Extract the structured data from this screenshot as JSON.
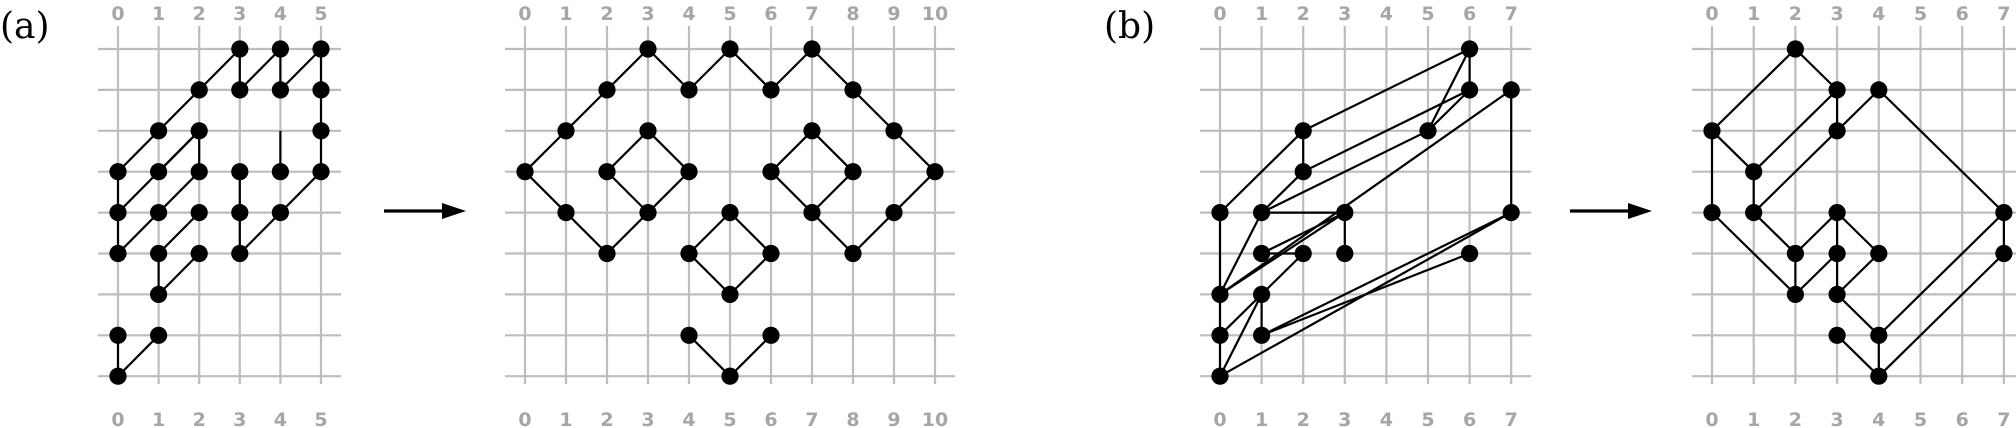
{
  "panels": [
    {
      "label": "(a)"
    },
    {
      "label": "(b)"
    }
  ],
  "diagrams": [
    {
      "id": "a-left",
      "columns": [
        "0",
        "1",
        "2",
        "3",
        "4",
        "5"
      ],
      "rows": 9,
      "nodes": [
        [
          3,
          0
        ],
        [
          4,
          0
        ],
        [
          5,
          0
        ],
        [
          2,
          1
        ],
        [
          3,
          1
        ],
        [
          4,
          1
        ],
        [
          5,
          1
        ],
        [
          1,
          2
        ],
        [
          2,
          2
        ],
        [
          5,
          2
        ],
        [
          0,
          3
        ],
        [
          1,
          3
        ],
        [
          2,
          3
        ],
        [
          3,
          3
        ],
        [
          4,
          3
        ],
        [
          5,
          3
        ],
        [
          0,
          4
        ],
        [
          1,
          4
        ],
        [
          2,
          4
        ],
        [
          3,
          4
        ],
        [
          4,
          4
        ],
        [
          0,
          5
        ],
        [
          1,
          5
        ],
        [
          2,
          5
        ],
        [
          3,
          5
        ],
        [
          1,
          6
        ],
        [
          0,
          7
        ],
        [
          1,
          7
        ],
        [
          0,
          8
        ]
      ],
      "edges": [
        [
          [
            0,
            3
          ],
          [
            3,
            0
          ]
        ],
        [
          [
            3,
            1
          ],
          [
            4,
            0
          ]
        ],
        [
          [
            4,
            1
          ],
          [
            5,
            0
          ]
        ],
        [
          [
            3,
            0
          ],
          [
            3,
            1
          ]
        ],
        [
          [
            4,
            0
          ],
          [
            4,
            1
          ]
        ],
        [
          [
            5,
            0
          ],
          [
            5,
            3
          ]
        ],
        [
          [
            0,
            3
          ],
          [
            0,
            5
          ]
        ],
        [
          [
            2,
            2
          ],
          [
            2,
            3
          ]
        ],
        [
          [
            1,
            3
          ],
          [
            2,
            2
          ]
        ],
        [
          [
            0,
            4
          ],
          [
            2,
            2
          ]
        ],
        [
          [
            0,
            5
          ],
          [
            2,
            3
          ]
        ],
        [
          [
            1,
            5
          ],
          [
            2,
            4
          ]
        ],
        [
          [
            1,
            6
          ],
          [
            2,
            5
          ]
        ],
        [
          [
            1,
            5
          ],
          [
            1,
            6
          ]
        ],
        [
          [
            3,
            3
          ],
          [
            3,
            5
          ]
        ],
        [
          [
            4,
            2
          ],
          [
            4,
            3
          ]
        ],
        [
          [
            3,
            5
          ],
          [
            5,
            3
          ]
        ],
        [
          [
            0,
            7
          ],
          [
            0,
            8
          ]
        ],
        [
          [
            0,
            8
          ],
          [
            1,
            7
          ]
        ]
      ]
    },
    {
      "id": "a-right",
      "columns": [
        "0",
        "1",
        "2",
        "3",
        "4",
        "5",
        "6",
        "7",
        "8",
        "9",
        "10"
      ],
      "rows": 9,
      "nodes": [
        [
          3,
          0
        ],
        [
          5,
          0
        ],
        [
          7,
          0
        ],
        [
          2,
          1
        ],
        [
          4,
          1
        ],
        [
          6,
          1
        ],
        [
          8,
          1
        ],
        [
          1,
          2
        ],
        [
          3,
          2
        ],
        [
          7,
          2
        ],
        [
          9,
          2
        ],
        [
          0,
          3
        ],
        [
          2,
          3
        ],
        [
          4,
          3
        ],
        [
          6,
          3
        ],
        [
          8,
          3
        ],
        [
          10,
          3
        ],
        [
          1,
          4
        ],
        [
          3,
          4
        ],
        [
          5,
          4
        ],
        [
          7,
          4
        ],
        [
          9,
          4
        ],
        [
          2,
          5
        ],
        [
          4,
          5
        ],
        [
          6,
          5
        ],
        [
          8,
          5
        ],
        [
          5,
          6
        ],
        [
          4,
          7
        ],
        [
          6,
          7
        ],
        [
          5,
          8
        ]
      ],
      "edges": [
        [
          [
            0,
            3
          ],
          [
            3,
            0
          ]
        ],
        [
          [
            3,
            0
          ],
          [
            4,
            1
          ]
        ],
        [
          [
            4,
            1
          ],
          [
            5,
            0
          ]
        ],
        [
          [
            5,
            0
          ],
          [
            6,
            1
          ]
        ],
        [
          [
            6,
            1
          ],
          [
            7,
            0
          ]
        ],
        [
          [
            7,
            0
          ],
          [
            10,
            3
          ]
        ],
        [
          [
            0,
            3
          ],
          [
            2,
            5
          ]
        ],
        [
          [
            2,
            5
          ],
          [
            4,
            3
          ]
        ],
        [
          [
            3,
            2
          ],
          [
            2,
            3
          ]
        ],
        [
          [
            3,
            2
          ],
          [
            4,
            3
          ]
        ],
        [
          [
            2,
            3
          ],
          [
            3,
            4
          ]
        ],
        [
          [
            6,
            3
          ],
          [
            7,
            2
          ]
        ],
        [
          [
            7,
            2
          ],
          [
            8,
            3
          ]
        ],
        [
          [
            6,
            3
          ],
          [
            8,
            5
          ]
        ],
        [
          [
            8,
            5
          ],
          [
            10,
            3
          ]
        ],
        [
          [
            7,
            4
          ],
          [
            8,
            3
          ]
        ],
        [
          [
            5,
            4
          ],
          [
            4,
            5
          ]
        ],
        [
          [
            5,
            4
          ],
          [
            6,
            5
          ]
        ],
        [
          [
            4,
            5
          ],
          [
            5,
            6
          ]
        ],
        [
          [
            5,
            6
          ],
          [
            6,
            5
          ]
        ],
        [
          [
            4,
            7
          ],
          [
            5,
            8
          ]
        ],
        [
          [
            5,
            8
          ],
          [
            6,
            7
          ]
        ]
      ]
    },
    {
      "id": "b-left",
      "columns": [
        "0",
        "1",
        "2",
        "3",
        "4",
        "5",
        "6",
        "7"
      ],
      "rows": 9,
      "nodes": [
        [
          6,
          0
        ],
        [
          6,
          1
        ],
        [
          7,
          1
        ],
        [
          2,
          2
        ],
        [
          5,
          2
        ],
        [
          2,
          3
        ],
        [
          0,
          4
        ],
        [
          1,
          4
        ],
        [
          3,
          4
        ],
        [
          7,
          4
        ],
        [
          1,
          5
        ],
        [
          2,
          5
        ],
        [
          3,
          5
        ],
        [
          6,
          5
        ],
        [
          0,
          6
        ],
        [
          1,
          6
        ],
        [
          0,
          7
        ],
        [
          1,
          7
        ],
        [
          0,
          8
        ]
      ],
      "edges": [
        [
          [
            0,
            4
          ],
          [
            2,
            2
          ]
        ],
        [
          [
            2,
            2
          ],
          [
            6,
            0
          ]
        ],
        [
          [
            6,
            0
          ],
          [
            6,
            1
          ]
        ],
        [
          [
            6,
            1
          ],
          [
            5,
            2
          ]
        ],
        [
          [
            6,
            0
          ],
          [
            5,
            2
          ]
        ],
        [
          [
            2,
            3
          ],
          [
            6,
            1
          ]
        ],
        [
          [
            2,
            2
          ],
          [
            2,
            3
          ]
        ],
        [
          [
            1,
            4
          ],
          [
            2,
            3
          ]
        ],
        [
          [
            1,
            4
          ],
          [
            5,
            2
          ]
        ],
        [
          [
            7,
            1
          ],
          [
            7,
            4
          ]
        ],
        [
          [
            0,
            6
          ],
          [
            7,
            1
          ]
        ],
        [
          [
            0,
            4
          ],
          [
            0,
            8
          ]
        ],
        [
          [
            1,
            4
          ],
          [
            3,
            4
          ]
        ],
        [
          [
            0,
            6
          ],
          [
            3,
            4
          ]
        ],
        [
          [
            3,
            4
          ],
          [
            3,
            5
          ]
        ],
        [
          [
            1,
            5
          ],
          [
            3,
            4
          ]
        ],
        [
          [
            1,
            5
          ],
          [
            2,
            5
          ]
        ],
        [
          [
            0,
            6
          ],
          [
            1,
            4
          ]
        ],
        [
          [
            0,
            7
          ],
          [
            1,
            6
          ]
        ],
        [
          [
            1,
            6
          ],
          [
            1,
            7
          ]
        ],
        [
          [
            1,
            6
          ],
          [
            2,
            5
          ]
        ],
        [
          [
            0,
            8
          ],
          [
            7,
            4
          ]
        ],
        [
          [
            1,
            7
          ],
          [
            7,
            4
          ]
        ],
        [
          [
            1,
            7
          ],
          [
            6,
            5
          ]
        ],
        [
          [
            0,
            8
          ],
          [
            1,
            6
          ]
        ]
      ]
    },
    {
      "id": "b-right",
      "columns": [
        "0",
        "1",
        "2",
        "3",
        "4",
        "5",
        "6",
        "7"
      ],
      "rows": 9,
      "nodes": [
        [
          2,
          0
        ],
        [
          3,
          1
        ],
        [
          4,
          1
        ],
        [
          0,
          2
        ],
        [
          1,
          3
        ],
        [
          3,
          2
        ],
        [
          0,
          4
        ],
        [
          1,
          4
        ],
        [
          3,
          4
        ],
        [
          7,
          4
        ],
        [
          2,
          5
        ],
        [
          3,
          5
        ],
        [
          4,
          5
        ],
        [
          7,
          5
        ],
        [
          2,
          6
        ],
        [
          3,
          6
        ],
        [
          3,
          7
        ],
        [
          4,
          7
        ],
        [
          4,
          8
        ]
      ],
      "edges": [
        [
          [
            0,
            2
          ],
          [
            2,
            0
          ]
        ],
        [
          [
            2,
            0
          ],
          [
            3,
            1
          ]
        ],
        [
          [
            3,
            1
          ],
          [
            3,
            2
          ]
        ],
        [
          [
            0,
            2
          ],
          [
            0,
            4
          ]
        ],
        [
          [
            0,
            2
          ],
          [
            1,
            3
          ]
        ],
        [
          [
            0,
            4
          ],
          [
            2,
            6
          ]
        ],
        [
          [
            1,
            3
          ],
          [
            3,
            1
          ]
        ],
        [
          [
            1,
            4
          ],
          [
            4,
            1
          ]
        ],
        [
          [
            4,
            1
          ],
          [
            7,
            4
          ]
        ],
        [
          [
            1,
            3
          ],
          [
            1,
            4
          ]
        ],
        [
          [
            1,
            4
          ],
          [
            2,
            5
          ]
        ],
        [
          [
            2,
            5
          ],
          [
            3,
            4
          ]
        ],
        [
          [
            2,
            5
          ],
          [
            2,
            6
          ]
        ],
        [
          [
            2,
            6
          ],
          [
            3,
            5
          ]
        ],
        [
          [
            3,
            4
          ],
          [
            3,
            5
          ]
        ],
        [
          [
            3,
            4
          ],
          [
            4,
            5
          ]
        ],
        [
          [
            3,
            5
          ],
          [
            3,
            6
          ]
        ],
        [
          [
            3,
            6
          ],
          [
            4,
            5
          ]
        ],
        [
          [
            3,
            6
          ],
          [
            4,
            7
          ]
        ],
        [
          [
            3,
            7
          ],
          [
            4,
            8
          ]
        ],
        [
          [
            4,
            7
          ],
          [
            4,
            8
          ]
        ],
        [
          [
            4,
            8
          ],
          [
            7,
            5
          ]
        ],
        [
          [
            7,
            4
          ],
          [
            7,
            5
          ]
        ],
        [
          [
            4,
            7
          ],
          [
            7,
            4
          ]
        ]
      ]
    }
  ]
}
